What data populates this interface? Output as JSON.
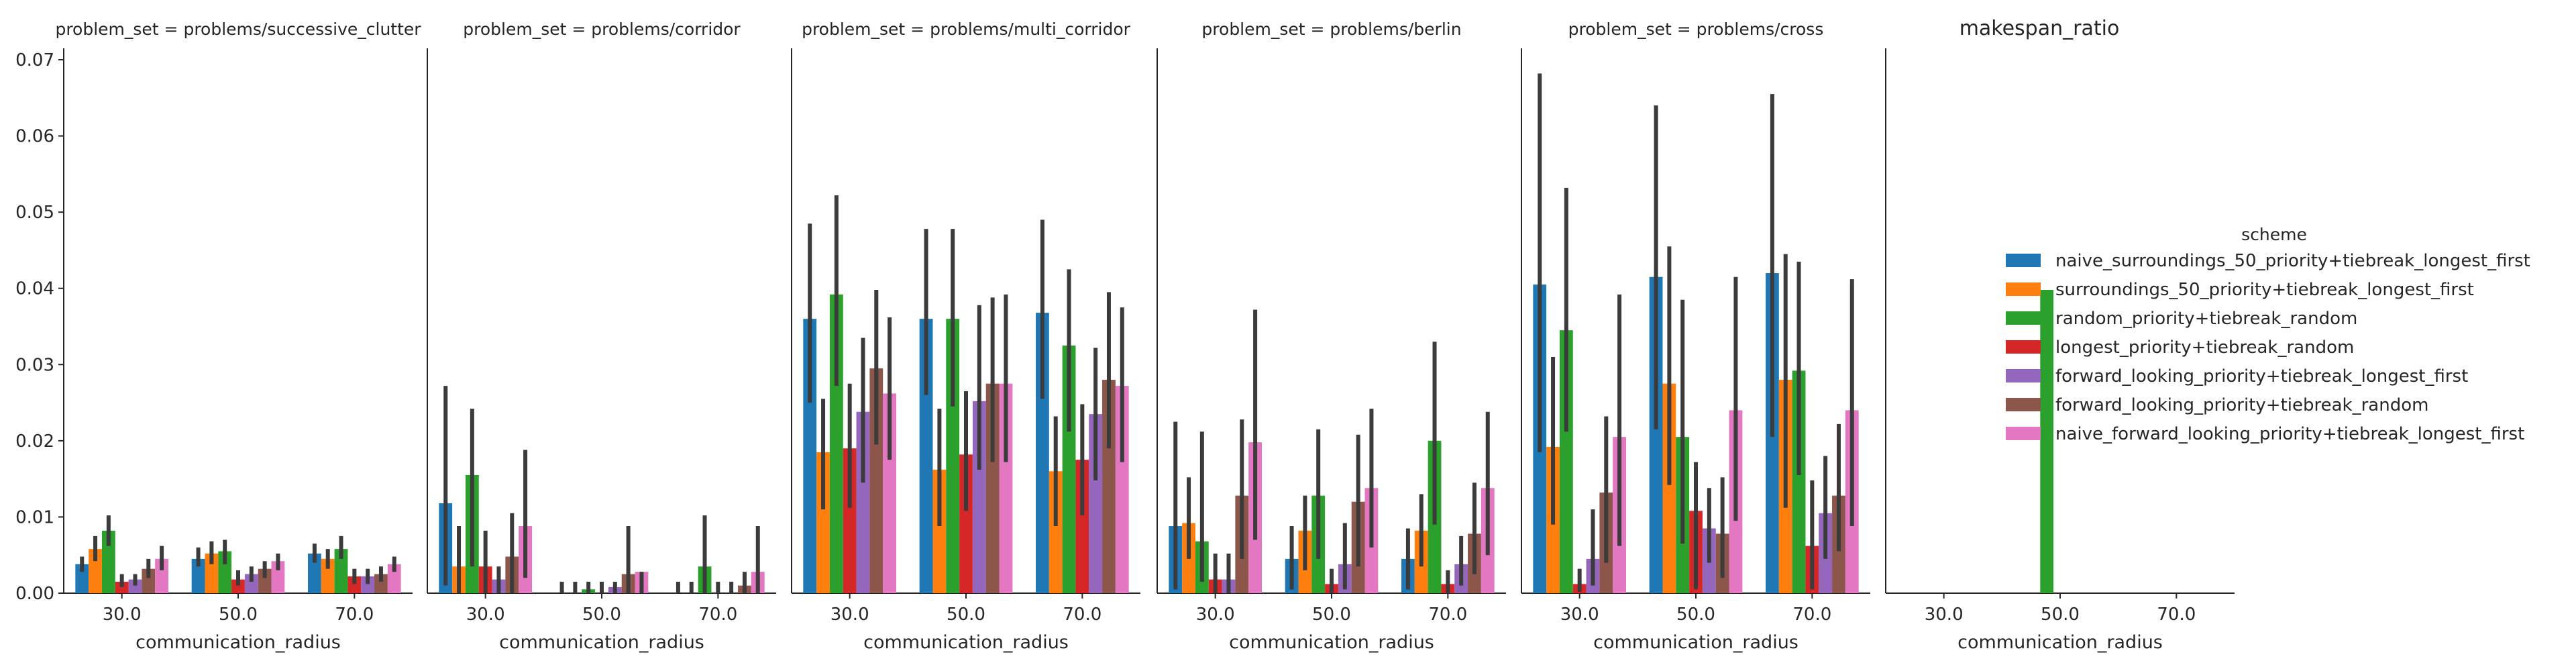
{
  "figure_title": "makespan_ratio",
  "ylabel": "",
  "legend": {
    "title": "scheme",
    "placement": "right",
    "entries": [
      {
        "name": "naive_surroundings_50_priority+tiebreak_longest_first",
        "color": "#1f77b4"
      },
      {
        "name": "surroundings_50_priority+tiebreak_longest_first",
        "color": "#ff7f0e"
      },
      {
        "name": "random_priority+tiebreak_random",
        "color": "#2ca02c"
      },
      {
        "name": "longest_priority+tiebreak_random",
        "color": "#d62728"
      },
      {
        "name": "forward_looking_priority+tiebreak_longest_first",
        "color": "#9467bd"
      },
      {
        "name": "forward_looking_priority+tiebreak_random",
        "color": "#8c564b"
      },
      {
        "name": "naive_forward_looking_priority+tiebreak_longest_first",
        "color": "#e377c2"
      }
    ]
  },
  "chart_data": [
    {
      "type": "bar",
      "title": "problem_set = problems/successive_clutter",
      "xlabel": "communication_radius",
      "categories": [
        "30.0",
        "50.0",
        "70.0"
      ],
      "ylim": [
        0,
        0.0715
      ],
      "yticks": [
        "0.00",
        "0.01",
        "0.02",
        "0.03",
        "0.04",
        "0.05",
        "0.06",
        "0.07"
      ],
      "series": [
        {
          "name": "naive_surroundings_50_priority+tiebreak_longest_first",
          "values": [
            0.0038,
            0.0045,
            0.0052
          ],
          "ci": [
            [
              0.0028,
              0.0048
            ],
            [
              0.0035,
              0.006
            ],
            [
              0.004,
              0.0065
            ]
          ]
        },
        {
          "name": "surroundings_50_priority+tiebreak_longest_first",
          "values": [
            0.0058,
            0.0052,
            0.0045
          ],
          "ci": [
            [
              0.0042,
              0.0075
            ],
            [
              0.0038,
              0.0068
            ],
            [
              0.0032,
              0.0058
            ]
          ]
        },
        {
          "name": "random_priority+tiebreak_random",
          "values": [
            0.0082,
            0.0055,
            0.0058
          ],
          "ci": [
            [
              0.0062,
              0.0102
            ],
            [
              0.0038,
              0.007
            ],
            [
              0.0045,
              0.0075
            ]
          ]
        },
        {
          "name": "longest_priority+tiebreak_random",
          "values": [
            0.0015,
            0.0018,
            0.0022
          ],
          "ci": [
            [
              0.0008,
              0.0025
            ],
            [
              0.001,
              0.003
            ],
            [
              0.0012,
              0.0032
            ]
          ]
        },
        {
          "name": "forward_looking_priority+tiebreak_longest_first",
          "values": [
            0.0018,
            0.0025,
            0.0022
          ],
          "ci": [
            [
              0.001,
              0.0025
            ],
            [
              0.0015,
              0.0035
            ],
            [
              0.0012,
              0.0032
            ]
          ]
        },
        {
          "name": "forward_looking_priority+tiebreak_random",
          "values": [
            0.0032,
            0.0032,
            0.0025
          ],
          "ci": [
            [
              0.002,
              0.0045
            ],
            [
              0.002,
              0.0042
            ],
            [
              0.0015,
              0.0035
            ]
          ]
        },
        {
          "name": "naive_forward_looking_priority+tiebreak_longest_first",
          "values": [
            0.0045,
            0.0042,
            0.0038
          ],
          "ci": [
            [
              0.003,
              0.0062
            ],
            [
              0.003,
              0.0052
            ],
            [
              0.0028,
              0.0048
            ]
          ]
        }
      ]
    },
    {
      "type": "bar",
      "title": "problem_set = problems/corridor",
      "xlabel": "communication_radius",
      "categories": [
        "30.0",
        "50.0",
        "70.0"
      ],
      "ylim": [
        0,
        0.0715
      ],
      "yticks": [],
      "series": [
        {
          "name": "naive_surroundings_50_priority+tiebreak_longest_first",
          "values": [
            0.0118,
            0.0,
            0.0
          ],
          "ci": [
            [
              0.001,
              0.0272
            ],
            [
              0.0,
              0.0015
            ],
            [
              0.0,
              0.0015
            ]
          ]
        },
        {
          "name": "surroundings_50_priority+tiebreak_longest_first",
          "values": [
            0.0035,
            0.0,
            0.0
          ],
          "ci": [
            [
              0.0,
              0.0088
            ],
            [
              0.0,
              0.0015
            ],
            [
              0.0,
              0.0015
            ]
          ]
        },
        {
          "name": "random_priority+tiebreak_random",
          "values": [
            0.0155,
            0.0005,
            0.0035
          ],
          "ci": [
            [
              0.0035,
              0.0242
            ],
            [
              0.0,
              0.0015
            ],
            [
              0.0,
              0.0102
            ]
          ]
        },
        {
          "name": "longest_priority+tiebreak_random",
          "values": [
            0.0035,
            0.0,
            0.0
          ],
          "ci": [
            [
              0.0,
              0.0082
            ],
            [
              0.0,
              0.0015
            ],
            [
              0.0,
              0.0015
            ]
          ]
        },
        {
          "name": "forward_looking_priority+tiebreak_longest_first",
          "values": [
            0.0018,
            0.0008,
            0.0
          ],
          "ci": [
            [
              0.0,
              0.0035
            ],
            [
              0.0,
              0.0015
            ],
            [
              0.0,
              0.0015
            ]
          ]
        },
        {
          "name": "forward_looking_priority+tiebreak_random",
          "values": [
            0.0048,
            0.0025,
            0.001
          ],
          "ci": [
            [
              0.0,
              0.0105
            ],
            [
              0.0,
              0.0088
            ],
            [
              0.0,
              0.0028
            ]
          ]
        },
        {
          "name": "naive_forward_looking_priority+tiebreak_longest_first",
          "values": [
            0.0088,
            0.0028,
            0.0028
          ],
          "ci": [
            [
              0.002,
              0.0188
            ],
            [
              0.0,
              0.0028
            ],
            [
              0.0,
              0.0088
            ]
          ]
        }
      ]
    },
    {
      "type": "bar",
      "title": "problem_set = problems/multi_corridor",
      "xlabel": "communication_radius",
      "categories": [
        "30.0",
        "50.0",
        "70.0"
      ],
      "ylim": [
        0,
        0.0715
      ],
      "yticks": [],
      "series": [
        {
          "name": "naive_surroundings_50_priority+tiebreak_longest_first",
          "values": [
            0.036,
            0.036,
            0.0368
          ],
          "ci": [
            [
              0.025,
              0.0485
            ],
            [
              0.026,
              0.0478
            ],
            [
              0.0255,
              0.049
            ]
          ]
        },
        {
          "name": "surroundings_50_priority+tiebreak_longest_first",
          "values": [
            0.0185,
            0.0162,
            0.016
          ],
          "ci": [
            [
              0.011,
              0.0255
            ],
            [
              0.0088,
              0.0242
            ],
            [
              0.0088,
              0.0232
            ]
          ]
        },
        {
          "name": "random_priority+tiebreak_random",
          "values": [
            0.0392,
            0.036,
            0.0325
          ],
          "ci": [
            [
              0.0272,
              0.0522
            ],
            [
              0.0245,
              0.0478
            ],
            [
              0.0212,
              0.0425
            ]
          ]
        },
        {
          "name": "longest_priority+tiebreak_random",
          "values": [
            0.019,
            0.0182,
            0.0175
          ],
          "ci": [
            [
              0.0112,
              0.0275
            ],
            [
              0.0108,
              0.0265
            ],
            [
              0.0102,
              0.0248
            ]
          ]
        },
        {
          "name": "forward_looking_priority+tiebreak_longest_first",
          "values": [
            0.0238,
            0.0252,
            0.0235
          ],
          "ci": [
            [
              0.0145,
              0.0335
            ],
            [
              0.0162,
              0.0378
            ],
            [
              0.0148,
              0.0322
            ]
          ]
        },
        {
          "name": "forward_looking_priority+tiebreak_random",
          "values": [
            0.0295,
            0.0275,
            0.028
          ],
          "ci": [
            [
              0.0195,
              0.0398
            ],
            [
              0.0172,
              0.0388
            ],
            [
              0.019,
              0.0395
            ]
          ]
        },
        {
          "name": "naive_forward_looking_priority+tiebreak_longest_first",
          "values": [
            0.0262,
            0.0275,
            0.0272
          ],
          "ci": [
            [
              0.0175,
              0.0362
            ],
            [
              0.0172,
              0.0392
            ],
            [
              0.0172,
              0.0375
            ]
          ]
        }
      ]
    },
    {
      "type": "bar",
      "title": "problem_set = problems/berlin",
      "xlabel": "communication_radius",
      "categories": [
        "30.0",
        "50.0",
        "70.0"
      ],
      "ylim": [
        0,
        0.0715
      ],
      "yticks": [],
      "series": [
        {
          "name": "naive_surroundings_50_priority+tiebreak_longest_first",
          "values": [
            0.0088,
            0.0045,
            0.0045
          ],
          "ci": [
            [
              0.0005,
              0.0225
            ],
            [
              0.0005,
              0.0088
            ],
            [
              0.0005,
              0.0085
            ]
          ]
        },
        {
          "name": "surroundings_50_priority+tiebreak_longest_first",
          "values": [
            0.0092,
            0.0082,
            0.0082
          ],
          "ci": [
            [
              0.0045,
              0.0152
            ],
            [
              0.003,
              0.0128
            ],
            [
              0.0035,
              0.013
            ]
          ]
        },
        {
          "name": "random_priority+tiebreak_random",
          "values": [
            0.0068,
            0.0128,
            0.02
          ],
          "ci": [
            [
              0.0015,
              0.0212
            ],
            [
              0.0045,
              0.0215
            ],
            [
              0.009,
              0.033
            ]
          ]
        },
        {
          "name": "longest_priority+tiebreak_random",
          "values": [
            0.0018,
            0.0012,
            0.0012
          ],
          "ci": [
            [
              0.0,
              0.0052
            ],
            [
              0.0,
              0.0032
            ],
            [
              0.0,
              0.003
            ]
          ]
        },
        {
          "name": "forward_looking_priority+tiebreak_longest_first",
          "values": [
            0.0018,
            0.0038,
            0.0038
          ],
          "ci": [
            [
              0.0,
              0.0052
            ],
            [
              0.0005,
              0.0092
            ],
            [
              0.001,
              0.0075
            ]
          ]
        },
        {
          "name": "forward_looking_priority+tiebreak_random",
          "values": [
            0.0128,
            0.012,
            0.0078
          ],
          "ci": [
            [
              0.0045,
              0.0228
            ],
            [
              0.0035,
              0.0208
            ],
            [
              0.0025,
              0.0145
            ]
          ]
        },
        {
          "name": "naive_forward_looking_priority+tiebreak_longest_first",
          "values": [
            0.0198,
            0.0138,
            0.0138
          ],
          "ci": [
            [
              0.007,
              0.0372
            ],
            [
              0.006,
              0.0242
            ],
            [
              0.005,
              0.0238
            ]
          ]
        }
      ]
    },
    {
      "type": "bar",
      "title": "problem_set = problems/cross",
      "xlabel": "communication_radius",
      "categories": [
        "30.0",
        "50.0",
        "70.0"
      ],
      "ylim": [
        0,
        0.0715
      ],
      "yticks": [],
      "series": [
        {
          "name": "naive_surroundings_50_priority+tiebreak_longest_first",
          "values": [
            0.0405,
            0.0415,
            0.042
          ],
          "ci": [
            [
              0.0185,
              0.0682
            ],
            [
              0.0215,
              0.064
            ],
            [
              0.0205,
              0.0655
            ]
          ]
        },
        {
          "name": "surroundings_50_priority+tiebreak_longest_first",
          "values": [
            0.0192,
            0.0275,
            0.028
          ],
          "ci": [
            [
              0.009,
              0.031
            ],
            [
              0.0142,
              0.0455
            ],
            [
              0.0112,
              0.0445
            ]
          ]
        },
        {
          "name": "random_priority+tiebreak_random",
          "values": [
            0.0345,
            0.0205,
            0.0292
          ],
          "ci": [
            [
              0.0212,
              0.0532
            ],
            [
              0.0065,
              0.0385
            ],
            [
              0.0155,
              0.0435
            ]
          ]
        },
        {
          "name": "longest_priority+tiebreak_random",
          "values": [
            0.0012,
            0.0108,
            0.0062
          ],
          "ci": [
            [
              0.0002,
              0.0032
            ],
            [
              0.0005,
              0.0172
            ],
            [
              0.0005,
              0.0148
            ]
          ]
        },
        {
          "name": "forward_looking_priority+tiebreak_longest_first",
          "values": [
            0.0045,
            0.0085,
            0.0105
          ],
          "ci": [
            [
              0.001,
              0.011
            ],
            [
              0.004,
              0.0138
            ],
            [
              0.0045,
              0.018
            ]
          ]
        },
        {
          "name": "forward_looking_priority+tiebreak_random",
          "values": [
            0.0132,
            0.0078,
            0.0128
          ],
          "ci": [
            [
              0.004,
              0.0232
            ],
            [
              0.002,
              0.0152
            ],
            [
              0.0055,
              0.0222
            ]
          ]
        },
        {
          "name": "naive_forward_looking_priority+tiebreak_longest_first",
          "values": [
            0.0205,
            0.024,
            0.024
          ],
          "ci": [
            [
              0.0062,
              0.0392
            ],
            [
              0.0095,
              0.0415
            ],
            [
              0.0088,
              0.0412
            ]
          ]
        }
      ]
    },
    {
      "type": "bar",
      "title": "",
      "xlabel": "communication_radius",
      "categories": [
        "30.0",
        "50.0",
        "70.0"
      ],
      "ylim": [
        0,
        0.0715
      ],
      "yticks": [],
      "series": [
        {
          "name": "random_priority+tiebreak_random",
          "values": [
            null,
            0.0398,
            null
          ],
          "ci": [
            null,
            null,
            null
          ]
        }
      ]
    }
  ]
}
